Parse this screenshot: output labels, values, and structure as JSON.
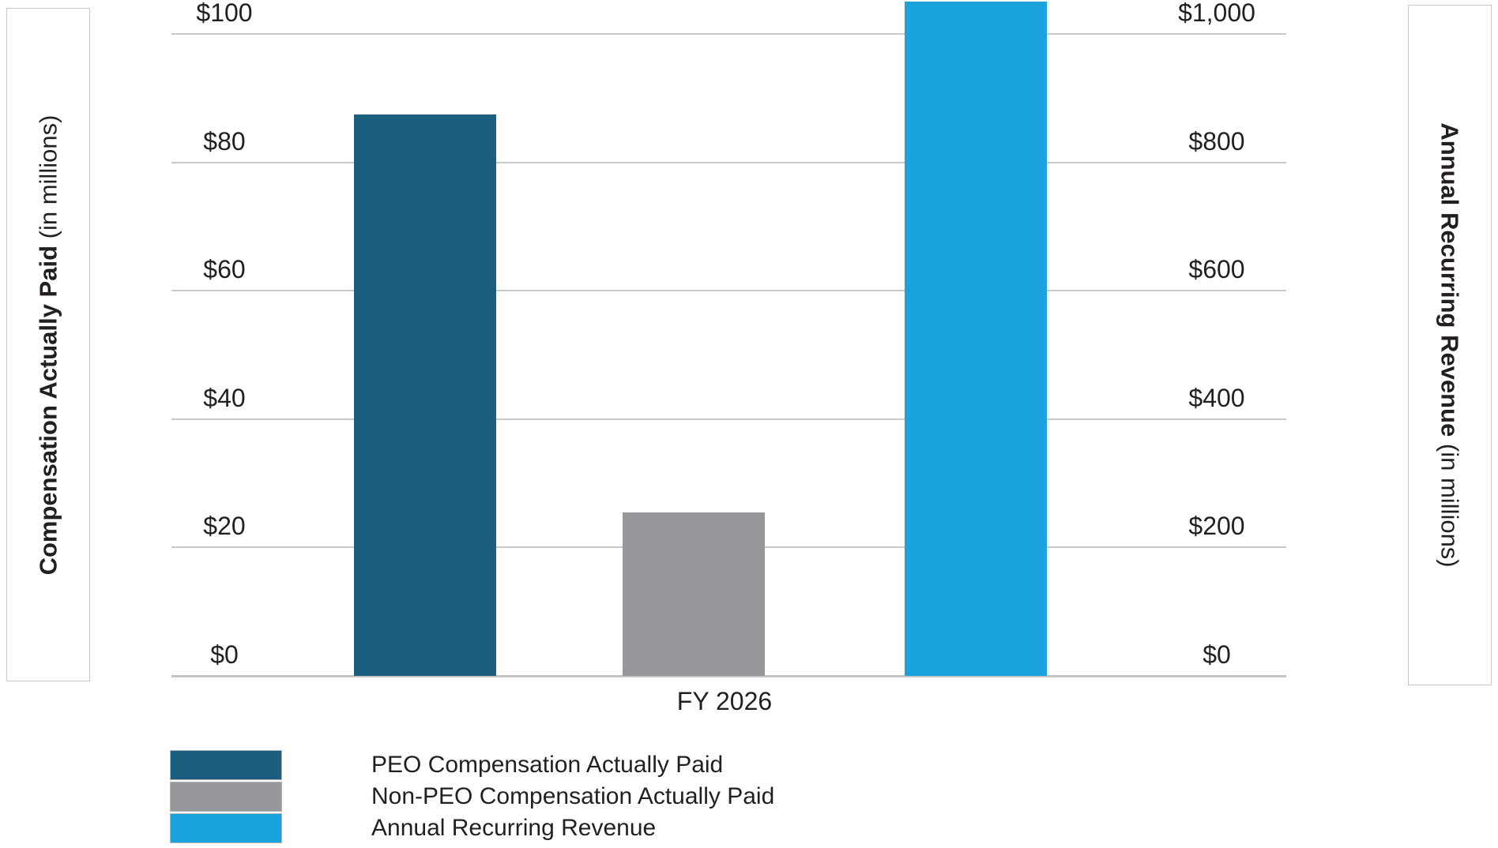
{
  "page": {
    "background": "#ffffff",
    "text_color": "#231f20",
    "gridline_color": "#c9cacb"
  },
  "left_axis_title": {
    "bold": "Compensation Actually Paid",
    "normal": " (in millions)"
  },
  "right_axis_title": {
    "bold": "Annual Recurring Revenue",
    "normal": " (in millions)"
  },
  "chart_data": {
    "type": "bar",
    "categories": [
      "FY 2026"
    ],
    "xlabel": "FY 2026",
    "grid": true,
    "legend_position": "bottom-left",
    "left_axis": {
      "label": "Compensation Actually Paid (in millions)",
      "ticks": [
        "$0",
        "$20",
        "$40",
        "$60",
        "$80",
        "$100"
      ],
      "range": [
        0,
        100
      ]
    },
    "right_axis": {
      "label": "Annual Recurring Revenue (in millions)",
      "ticks": [
        "$0",
        "$200",
        "$400",
        "$600",
        "$800",
        "$1,000"
      ],
      "range": [
        0,
        1000
      ]
    },
    "series": [
      {
        "name": "PEO Compensation Actually Paid",
        "axis": "left",
        "values": [
          87.5
        ],
        "color": "#1c5e7f"
      },
      {
        "name": "Non-PEO Compensation Actually Paid",
        "axis": "left",
        "values": [
          25.5
        ],
        "color": "#97989b"
      },
      {
        "name": "Annual Recurring Revenue",
        "axis": "right",
        "values": [
          1050
        ],
        "color": "#1aa3dc"
      }
    ]
  }
}
